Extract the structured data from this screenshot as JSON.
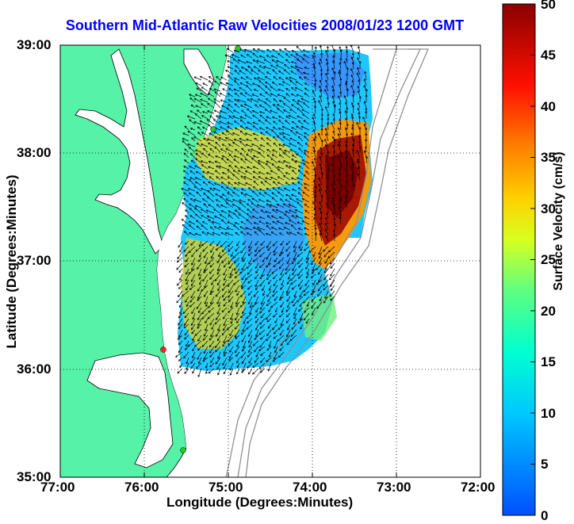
{
  "title": "Southern Mid-Atlantic Raw Velocities 2008/01/23 1200 GMT",
  "map": {
    "xlabel": "Longitude (Degrees:Minutes)",
    "ylabel": "Latitude (Degrees:Minutes)",
    "x_ticks": [
      "77:00",
      "76:00",
      "75:00",
      "74:00",
      "73:00",
      "72:00"
    ],
    "y_ticks": [
      "39:00",
      "38:00",
      "37:00",
      "36:00",
      "35:00"
    ],
    "colors": {
      "land": "#55f2a8",
      "water": "#ffffff",
      "coast": "#000000",
      "grid": "#000000"
    },
    "site_markers": [
      {
        "name": "north-site",
        "color": "#22cc22"
      },
      {
        "name": "central-site",
        "color": "#22cc22"
      },
      {
        "name": "south-site",
        "color": "#ff2222"
      },
      {
        "name": "hatteras-site",
        "color": "#22cc22"
      }
    ]
  },
  "colorbar": {
    "label": "Surface Velocity (cm/s)",
    "ticks": [
      "50",
      "45",
      "40",
      "35",
      "30",
      "25",
      "20",
      "15",
      "10",
      "5",
      "0"
    ],
    "min": 0,
    "max": 50,
    "unit": "cm/s"
  }
}
